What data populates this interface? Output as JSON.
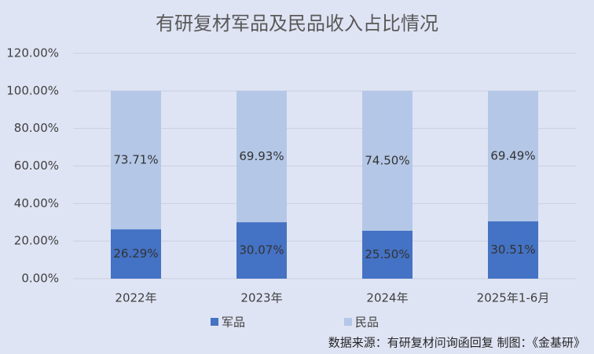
{
  "chart_data": {
    "type": "stacked_bar",
    "title": "有研复材军品及民品收入占比情况",
    "categories": [
      "2022年",
      "2023年",
      "2024年",
      "2025年1-6月"
    ],
    "series": [
      {
        "name": "军品",
        "color": "#4472c4",
        "values": [
          26.29,
          30.07,
          25.5,
          30.51
        ],
        "value_labels": [
          "26.29%",
          "30.07%",
          "25.50%",
          "30.51%"
        ]
      },
      {
        "name": "民品",
        "color": "#b4c7e7",
        "values": [
          73.71,
          69.93,
          74.5,
          69.49
        ],
        "value_labels": [
          "73.71%",
          "69.93%",
          "74.50%",
          "69.49%"
        ]
      }
    ],
    "ylim": [
      0,
      120
    ],
    "yticks": [
      {
        "value": 0,
        "label": "0.00%"
      },
      {
        "value": 20,
        "label": "20.00%"
      },
      {
        "value": 40,
        "label": "40.00%"
      },
      {
        "value": 60,
        "label": "60.00%"
      },
      {
        "value": 80,
        "label": "80.00%"
      },
      {
        "value": 100,
        "label": "100.00%"
      },
      {
        "value": 120,
        "label": "120.00%"
      }
    ],
    "grid": true,
    "legend": "bottom",
    "source": "数据来源：有研复材问询函回复   制图：《金基研》"
  }
}
